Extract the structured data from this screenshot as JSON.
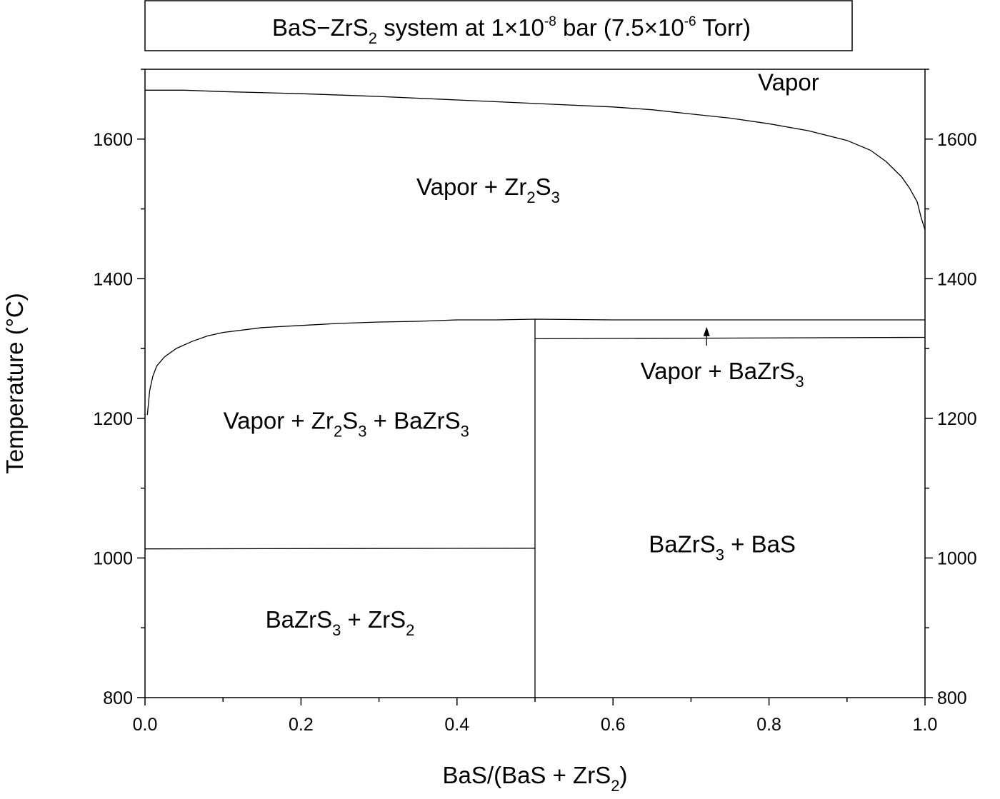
{
  "chart_data": {
    "type": "line",
    "title": {
      "parts": [
        {
          "t": "BaS−ZrS",
          "s": "n"
        },
        {
          "t": "2",
          "s": "sub"
        },
        {
          "t": " system at 1×10",
          "s": "n"
        },
        {
          "t": "-8",
          "s": "sup"
        },
        {
          "t": " bar (7.5×10",
          "s": "n"
        },
        {
          "t": "-6",
          "s": "sup"
        },
        {
          "t": " Torr)",
          "s": "n"
        }
      ]
    },
    "xlabel": {
      "parts": [
        {
          "t": "BaS/(BaS + ZrS",
          "s": "n"
        },
        {
          "t": "2",
          "s": "sub"
        },
        {
          "t": ")",
          "s": "n"
        }
      ]
    },
    "ylabel": "Temperature (°C)",
    "xlim": [
      0.0,
      1.0
    ],
    "ylim": [
      800,
      1700
    ],
    "x_ticks": [
      "0.0",
      "0.2",
      "0.4",
      "0.6",
      "0.8",
      "1.0"
    ],
    "y_ticks_left": [
      "800",
      "1000",
      "1200",
      "1400",
      "1600"
    ],
    "y_ticks_right": [
      "800",
      "1000",
      "1200",
      "1400",
      "1600"
    ],
    "series": [
      {
        "points": [
          [
            0.0,
            1670
          ],
          [
            0.05,
            1670
          ],
          [
            0.1,
            1668
          ],
          [
            0.2,
            1665
          ],
          [
            0.3,
            1661
          ],
          [
            0.4,
            1656
          ],
          [
            0.5,
            1651
          ],
          [
            0.6,
            1646
          ],
          [
            0.65,
            1642
          ],
          [
            0.7,
            1636
          ],
          [
            0.75,
            1630
          ],
          [
            0.8,
            1622
          ],
          [
            0.85,
            1612
          ],
          [
            0.9,
            1598
          ],
          [
            0.93,
            1584
          ],
          [
            0.95,
            1568
          ],
          [
            0.97,
            1546
          ],
          [
            0.98,
            1530
          ],
          [
            0.99,
            1510
          ],
          [
            0.995,
            1488
          ],
          [
            1.0,
            1470
          ]
        ]
      },
      {
        "points": [
          [
            0.003,
            1205
          ],
          [
            0.006,
            1240
          ],
          [
            0.01,
            1260
          ],
          [
            0.015,
            1275
          ],
          [
            0.025,
            1288
          ],
          [
            0.04,
            1300
          ],
          [
            0.06,
            1310
          ],
          [
            0.08,
            1318
          ],
          [
            0.1,
            1323
          ],
          [
            0.15,
            1330
          ],
          [
            0.2,
            1333
          ],
          [
            0.25,
            1336
          ],
          [
            0.3,
            1338
          ],
          [
            0.35,
            1339
          ],
          [
            0.4,
            1341
          ],
          [
            0.45,
            1341
          ],
          [
            0.5,
            1342
          ],
          [
            0.6,
            1341
          ],
          [
            0.7,
            1341
          ],
          [
            0.8,
            1341
          ],
          [
            0.9,
            1341
          ],
          [
            1.0,
            1341
          ]
        ]
      },
      {
        "points": [
          [
            0.5,
            1314
          ],
          [
            1.0,
            1316
          ]
        ]
      },
      {
        "points": [
          [
            0.0,
            1013
          ],
          [
            0.5,
            1014
          ]
        ]
      },
      {
        "points": [
          [
            0.5,
            800
          ],
          [
            0.5,
            1342
          ]
        ]
      }
    ],
    "annotations": [
      {
        "x": 0.72,
        "y1": 1304,
        "y2": 1331,
        "type": "arrow"
      }
    ],
    "region_labels": [
      {
        "x": 0.825,
        "y": 1670,
        "parts": [
          {
            "t": "Vapor",
            "s": "n"
          }
        ]
      },
      {
        "x": 0.44,
        "y": 1520,
        "parts": [
          {
            "t": "Vapor + Zr",
            "s": "n"
          },
          {
            "t": "2",
            "s": "sub"
          },
          {
            "t": "S",
            "s": "n"
          },
          {
            "t": "3",
            "s": "sub"
          }
        ]
      },
      {
        "x": 0.74,
        "y": 1256,
        "parts": [
          {
            "t": "Vapor + BaZrS",
            "s": "n"
          },
          {
            "t": "3",
            "s": "sub"
          }
        ]
      },
      {
        "x": 0.258,
        "y": 1185,
        "parts": [
          {
            "t": "Vapor + Zr",
            "s": "n"
          },
          {
            "t": "2",
            "s": "sub"
          },
          {
            "t": "S",
            "s": "n"
          },
          {
            "t": "3",
            "s": "sub"
          },
          {
            "t": " + BaZrS",
            "s": "n"
          },
          {
            "t": "3",
            "s": "sub"
          }
        ]
      },
      {
        "x": 0.74,
        "y": 1008,
        "parts": [
          {
            "t": "BaZrS",
            "s": "n"
          },
          {
            "t": "3",
            "s": "sub"
          },
          {
            "t": " + BaS",
            "s": "n"
          }
        ]
      },
      {
        "x": 0.25,
        "y": 900,
        "parts": [
          {
            "t": "BaZrS",
            "s": "n"
          },
          {
            "t": "3",
            "s": "sub"
          },
          {
            "t": " + ZrS",
            "s": "n"
          },
          {
            "t": "2",
            "s": "sub"
          }
        ]
      }
    ],
    "legend": "none",
    "grid": false
  }
}
